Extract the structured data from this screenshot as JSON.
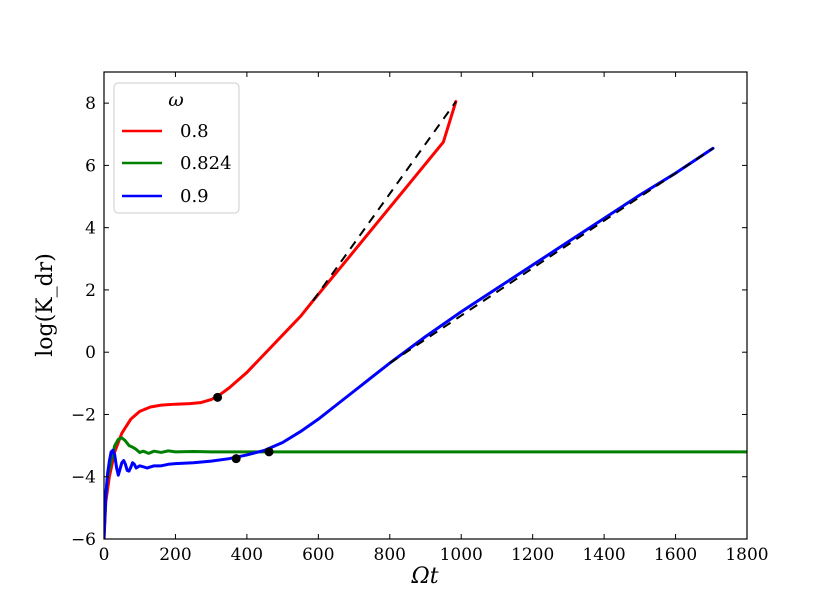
{
  "chart_data": {
    "type": "line",
    "xlabel": "Ωt",
    "ylabel": "log(K_dr)",
    "xlim": [
      0,
      1800
    ],
    "ylim": [
      -6,
      9
    ],
    "xticks": [
      0,
      200,
      400,
      600,
      800,
      1000,
      1200,
      1400,
      1600,
      1800
    ],
    "yticks": [
      -6,
      -4,
      -2,
      0,
      2,
      4,
      6,
      8
    ],
    "xtick_labels": [
      "0",
      "200",
      "400",
      "600",
      "800",
      "1000",
      "1200",
      "1400",
      "1600",
      "1800"
    ],
    "ytick_labels": [
      "−6",
      "−4",
      "−2",
      "0",
      "2",
      "4",
      "6",
      "8"
    ],
    "legend": {
      "title": "ω",
      "placement": "top-left"
    },
    "series": [
      {
        "name": "0.8",
        "color": "#ff0000",
        "points": [
          [
            0,
            -6
          ],
          [
            5,
            -4.8
          ],
          [
            15,
            -4.0
          ],
          [
            30,
            -3.2
          ],
          [
            50,
            -2.6
          ],
          [
            75,
            -2.15
          ],
          [
            100,
            -1.9
          ],
          [
            130,
            -1.76
          ],
          [
            160,
            -1.7
          ],
          [
            200,
            -1.67
          ],
          [
            240,
            -1.65
          ],
          [
            270,
            -1.62
          ],
          [
            300,
            -1.52
          ],
          [
            320,
            -1.4
          ],
          [
            350,
            -1.15
          ],
          [
            400,
            -0.65
          ],
          [
            450,
            -0.05
          ],
          [
            500,
            0.55
          ],
          [
            550,
            1.15
          ],
          [
            585,
            1.65
          ],
          [
            650,
            2.55
          ],
          [
            750,
            3.95
          ],
          [
            850,
            5.35
          ],
          [
            950,
            6.75
          ],
          [
            985,
            8.05
          ]
        ],
        "fit": {
          "x": [
            585,
            985
          ],
          "y": [
            1.65,
            8.05
          ],
          "color": "#000000"
        },
        "marker": [
          318,
          -1.45
        ]
      },
      {
        "name": "0.824",
        "color": "#008000",
        "points": [
          [
            0,
            -5.9
          ],
          [
            5,
            -4.6
          ],
          [
            10,
            -4.0
          ],
          [
            20,
            -3.5
          ],
          [
            30,
            -3.0
          ],
          [
            40,
            -2.8
          ],
          [
            50,
            -2.75
          ],
          [
            60,
            -2.85
          ],
          [
            70,
            -3.0
          ],
          [
            80,
            -3.05
          ],
          [
            90,
            -3.12
          ],
          [
            100,
            -3.22
          ],
          [
            110,
            -3.18
          ],
          [
            125,
            -3.25
          ],
          [
            140,
            -3.18
          ],
          [
            160,
            -3.22
          ],
          [
            180,
            -3.17
          ],
          [
            200,
            -3.2
          ],
          [
            250,
            -3.19
          ],
          [
            300,
            -3.2
          ],
          [
            400,
            -3.2
          ],
          [
            500,
            -3.2
          ],
          [
            800,
            -3.2
          ],
          [
            1200,
            -3.2
          ],
          [
            1600,
            -3.2
          ],
          [
            1800,
            -3.2
          ]
        ],
        "marker": [
          462,
          -3.2
        ]
      },
      {
        "name": "0.9",
        "color": "#0000ff",
        "points": [
          [
            0,
            -6
          ],
          [
            5,
            -4.6
          ],
          [
            10,
            -3.9
          ],
          [
            15,
            -3.5
          ],
          [
            20,
            -3.2
          ],
          [
            25,
            -3.15
          ],
          [
            30,
            -3.3
          ],
          [
            35,
            -3.7
          ],
          [
            40,
            -3.95
          ],
          [
            45,
            -3.75
          ],
          [
            50,
            -3.55
          ],
          [
            55,
            -3.48
          ],
          [
            60,
            -3.6
          ],
          [
            65,
            -3.8
          ],
          [
            70,
            -3.82
          ],
          [
            75,
            -3.7
          ],
          [
            80,
            -3.55
          ],
          [
            85,
            -3.6
          ],
          [
            90,
            -3.72
          ],
          [
            100,
            -3.65
          ],
          [
            110,
            -3.68
          ],
          [
            120,
            -3.72
          ],
          [
            140,
            -3.65
          ],
          [
            160,
            -3.65
          ],
          [
            180,
            -3.6
          ],
          [
            200,
            -3.58
          ],
          [
            250,
            -3.55
          ],
          [
            300,
            -3.5
          ],
          [
            350,
            -3.42
          ],
          [
            400,
            -3.3
          ],
          [
            450,
            -3.15
          ],
          [
            500,
            -2.9
          ],
          [
            550,
            -2.55
          ],
          [
            600,
            -2.15
          ],
          [
            650,
            -1.7
          ],
          [
            700,
            -1.25
          ],
          [
            750,
            -0.8
          ],
          [
            800,
            -0.35
          ],
          [
            900,
            0.5
          ],
          [
            1000,
            1.3
          ],
          [
            1100,
            2.05
          ],
          [
            1200,
            2.8
          ],
          [
            1300,
            3.55
          ],
          [
            1400,
            4.3
          ],
          [
            1500,
            5.05
          ],
          [
            1600,
            5.75
          ],
          [
            1705,
            6.55
          ]
        ],
        "fit": {
          "x": [
            800,
            1705
          ],
          "y": [
            -0.35,
            6.55
          ],
          "color": "#000000"
        },
        "marker": [
          370,
          -3.42
        ]
      }
    ]
  }
}
